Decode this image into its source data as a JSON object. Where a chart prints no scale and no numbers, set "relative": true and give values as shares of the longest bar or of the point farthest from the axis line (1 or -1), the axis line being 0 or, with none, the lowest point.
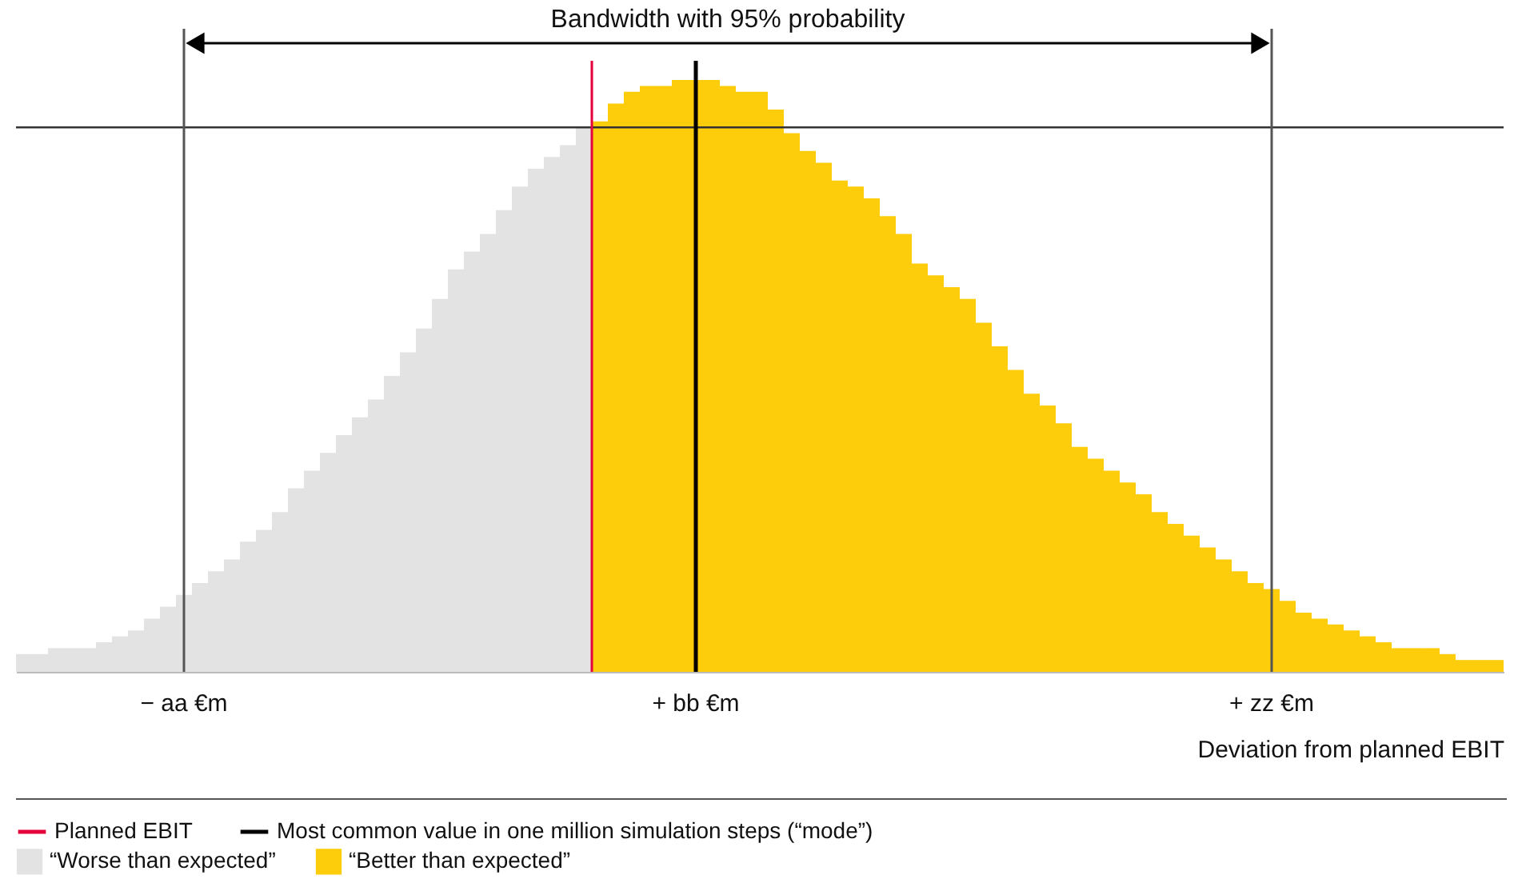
{
  "chart_data": {
    "type": "bar",
    "relative": true,
    "xlabel": "Deviation from planned EBIT",
    "annotations": [
      "Bandwidth with 95% probability"
    ],
    "categories": [
      null,
      null,
      null,
      null,
      null,
      null,
      null,
      null,
      null,
      null,
      "− aa €m",
      null,
      null,
      null,
      null,
      null,
      null,
      null,
      null,
      null,
      null,
      null,
      null,
      null,
      null,
      null,
      null,
      null,
      null,
      null,
      null,
      null,
      null,
      null,
      null,
      null,
      null,
      null,
      null,
      null,
      null,
      null,
      "+ bb €m",
      null,
      null,
      null,
      null,
      null,
      null,
      null,
      null,
      null,
      null,
      null,
      null,
      null,
      null,
      null,
      null,
      null,
      null,
      null,
      null,
      null,
      null,
      null,
      null,
      null,
      null,
      null,
      null,
      null,
      null,
      null,
      null,
      null,
      null,
      null,
      "+ zz €m",
      null,
      null,
      null,
      null,
      null,
      null,
      null,
      null,
      null,
      null,
      null,
      null,
      null,
      null
    ],
    "series": [
      {
        "name": "“Worse than expected”",
        "color": "#e2e3e2",
        "values": [
          0.03,
          0.03,
          0.04,
          0.04,
          0.04,
          0.05,
          0.06,
          0.07,
          0.09,
          0.11,
          0.13,
          0.15,
          0.17,
          0.19,
          0.22,
          0.24,
          0.27,
          0.31,
          0.34,
          0.37,
          0.4,
          0.43,
          0.46,
          0.5,
          0.54,
          0.58,
          0.63,
          0.68,
          0.71,
          0.74,
          0.78,
          0.82,
          0.85,
          0.87,
          0.89,
          0.92,
          null,
          null,
          null,
          null,
          null,
          null,
          null,
          null,
          null,
          null,
          null,
          null,
          null,
          null,
          null,
          null,
          null,
          null,
          null,
          null,
          null,
          null,
          null,
          null,
          null,
          null,
          null,
          null,
          null,
          null,
          null,
          null,
          null,
          null,
          null,
          null,
          null,
          null,
          null,
          null,
          null,
          null,
          null,
          null,
          null,
          null,
          null,
          null,
          null,
          null,
          null,
          null,
          null,
          null,
          null,
          null,
          null
        ]
      },
      {
        "name": "“Better than expected”",
        "color": "#fdcc0a",
        "values": [
          null,
          null,
          null,
          null,
          null,
          null,
          null,
          null,
          null,
          null,
          null,
          null,
          null,
          null,
          null,
          null,
          null,
          null,
          null,
          null,
          null,
          null,
          null,
          null,
          null,
          null,
          null,
          null,
          null,
          null,
          null,
          null,
          null,
          null,
          null,
          null,
          0.93,
          0.96,
          0.98,
          0.99,
          0.99,
          1.0,
          1.0,
          1.0,
          0.99,
          0.98,
          0.98,
          0.95,
          0.91,
          0.88,
          0.86,
          0.83,
          0.82,
          0.8,
          0.77,
          0.74,
          0.69,
          0.67,
          0.65,
          0.63,
          0.59,
          0.55,
          0.51,
          0.47,
          0.45,
          0.42,
          0.38,
          0.36,
          0.34,
          0.32,
          0.3,
          0.27,
          0.25,
          0.23,
          0.21,
          0.19,
          0.17,
          0.15,
          0.14,
          0.12,
          0.1,
          0.09,
          0.08,
          0.07,
          0.06,
          0.05,
          0.04,
          0.04,
          0.04,
          0.03,
          0.02,
          0.02,
          0.02
        ]
      }
    ],
    "ref_lines": [
      {
        "axis": "x",
        "label": "Planned EBIT",
        "color": "#e4003a"
      },
      {
        "axis": "x",
        "value": "+ bb €m",
        "label": "Most common value in one million simulation steps (“mode”)",
        "color": "#000000"
      },
      {
        "axis": "x",
        "value": "− aa €m",
        "color": "#555555"
      },
      {
        "axis": "x",
        "value": "+ zz €m",
        "color": "#555555"
      },
      {
        "axis": "y",
        "value": 0.92,
        "color": "#333333"
      }
    ],
    "legend": "bottom left"
  }
}
